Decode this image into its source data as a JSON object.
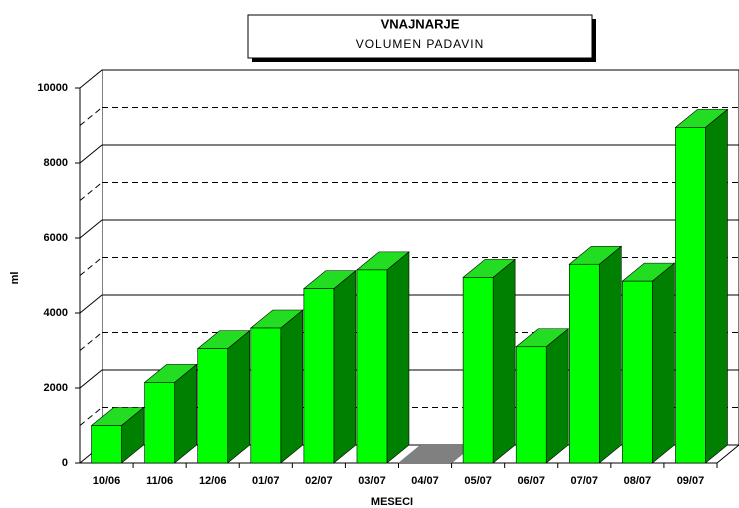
{
  "chart_data": {
    "type": "bar3d",
    "title": "VNAJNARJE",
    "subtitle": "VOLUMEN PADAVIN",
    "x_label": "MESECI",
    "y_label": "ml",
    "categories": [
      "10/06",
      "11/06",
      "12/06",
      "01/07",
      "02/07",
      "03/07",
      "04/07",
      "05/07",
      "06/07",
      "07/07",
      "08/07",
      "09/07"
    ],
    "values": [
      1000,
      2150,
      3050,
      3600,
      4650,
      5150,
      0,
      4950,
      3100,
      5300,
      4850,
      8950
    ],
    "color": "#00ff00",
    "ylim": [
      0,
      10000
    ],
    "yticks": [
      0,
      2000,
      4000,
      6000,
      8000,
      10000
    ],
    "minor_yticks": [
      1000,
      3000,
      5000,
      7000,
      9000
    ],
    "grid": true
  }
}
